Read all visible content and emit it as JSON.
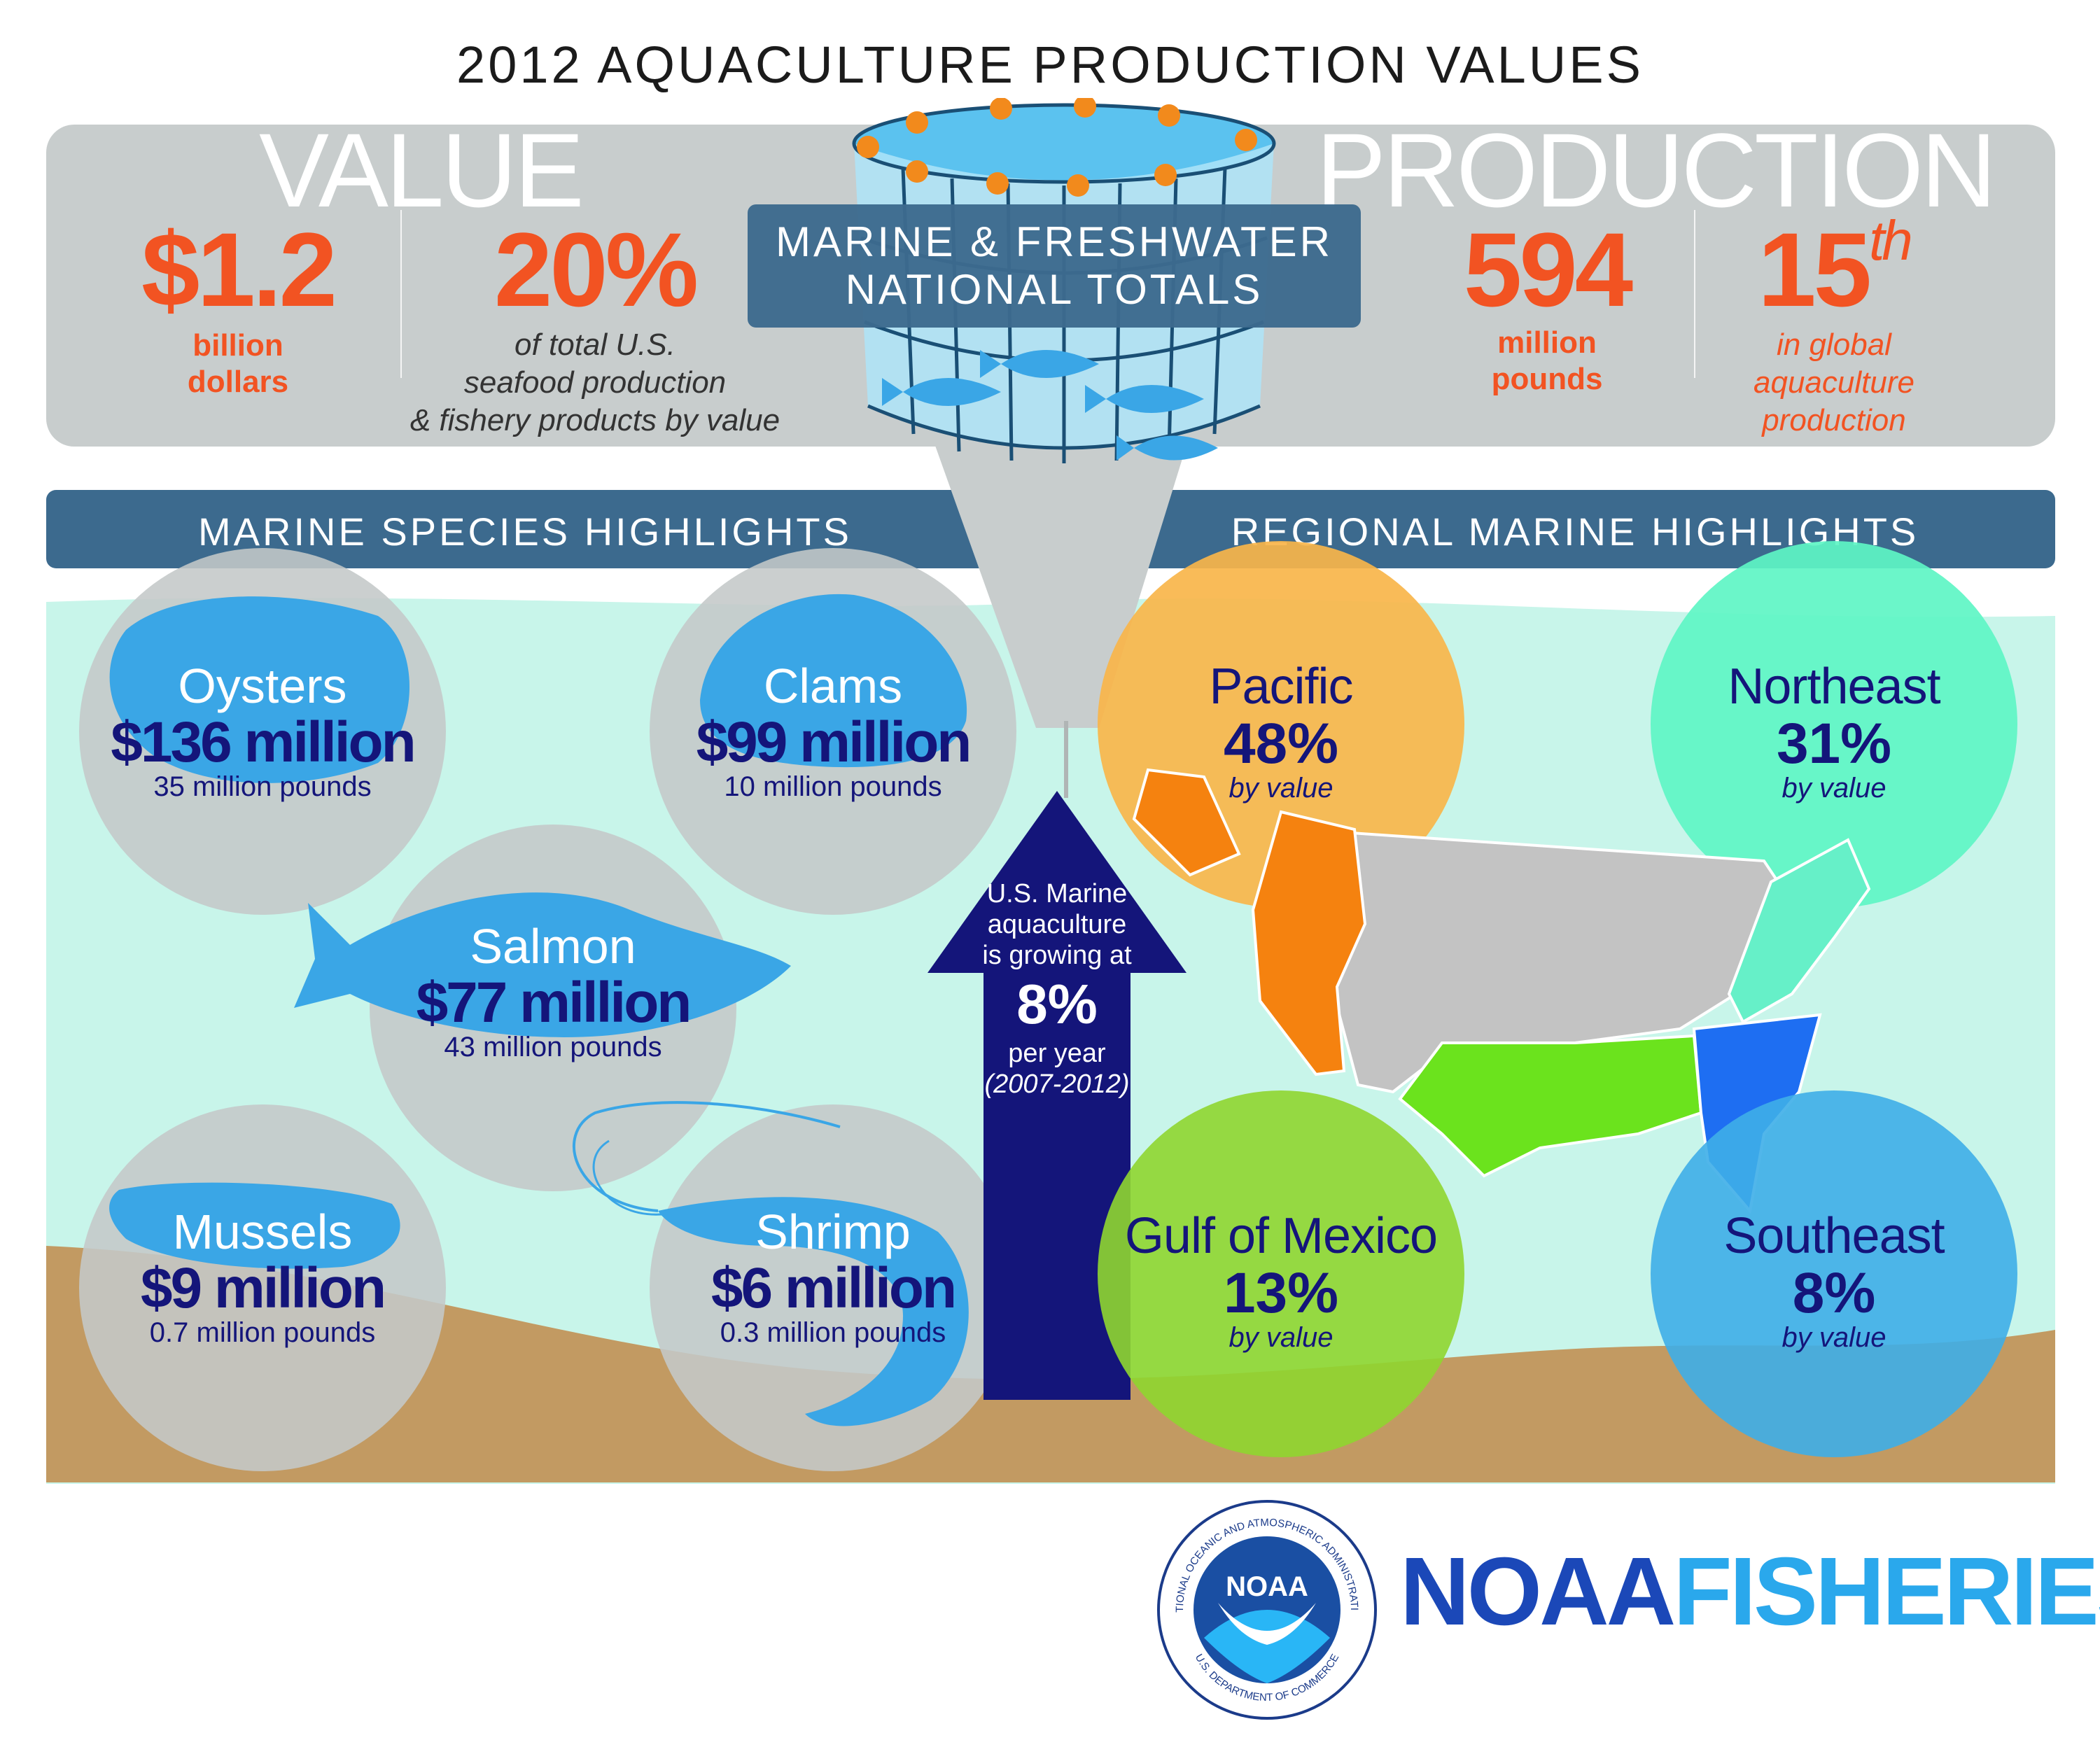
{
  "title": "2012 AQUACULTURE PRODUCTION VALUES",
  "value_section": {
    "heading": "VALUE",
    "dollars": {
      "number": "$1.2",
      "unit_line1": "billion",
      "unit_line2": "dollars"
    },
    "share": {
      "number": "20%",
      "line1": "of total U.S.",
      "line2": "seafood production",
      "line3": "& fishery products by value"
    }
  },
  "national_totals": {
    "line1": "MARINE & FRESHWATER",
    "line2": "NATIONAL TOTALS"
  },
  "production_section": {
    "heading": "PRODUCTION",
    "pounds": {
      "number": "594",
      "unit_line1": "million",
      "unit_line2": "pounds"
    },
    "rank": {
      "number": "15",
      "suffix": "th",
      "line1": "in global",
      "line2": "aquaculture",
      "line3": "production"
    }
  },
  "marine_species": {
    "header": "MARINE SPECIES HIGHLIGHTS",
    "items": [
      {
        "name": "Oysters",
        "value": "$136 million",
        "pounds": "35 million pounds"
      },
      {
        "name": "Clams",
        "value": "$99 million",
        "pounds": "10 million pounds"
      },
      {
        "name": "Salmon",
        "value": "$77 million",
        "pounds": "43 million pounds"
      },
      {
        "name": "Mussels",
        "value": "$9 million",
        "pounds": "0.7 million pounds"
      },
      {
        "name": "Shrimp",
        "value": "$6 million",
        "pounds": "0.3 million pounds"
      }
    ]
  },
  "growth": {
    "line1": "U.S. Marine",
    "line2": "aquaculture",
    "line3": "is growing at",
    "rate": "8%",
    "line4": "per year",
    "period": "(2007-2012)"
  },
  "regional": {
    "header": "REGIONAL MARINE HIGHLIGHTS",
    "items": [
      {
        "name": "Pacific",
        "pct": "48%",
        "by": "by value",
        "color": "#f8b54a"
      },
      {
        "name": "Northeast",
        "pct": "31%",
        "by": "by value",
        "color": "#5ef5c4"
      },
      {
        "name": "Gulf of Mexico",
        "pct": "13%",
        "by": "by value",
        "color": "#8fd630"
      },
      {
        "name": "Southeast",
        "pct": "8%",
        "by": "by value",
        "color": "#3eaee8"
      }
    ]
  },
  "logo": {
    "brand_part1": "NOAA",
    "brand_part2": "FISHERIES",
    "seal_text_top": "NATIONAL OCEANIC AND ATMOSPHERIC ADMINISTRATION",
    "seal_text_bottom": "U.S. DEPARTMENT OF COMMERCE",
    "seal_center": "NOAA"
  },
  "colors": {
    "accent_orange": "#f25322",
    "navy": "#14157a",
    "band_blue": "#3c6a8e",
    "panel_gray": "#c8cdcd",
    "water": "#c8f5ea",
    "sand": "#c29a62",
    "species_blue": "#3aa6e6"
  }
}
